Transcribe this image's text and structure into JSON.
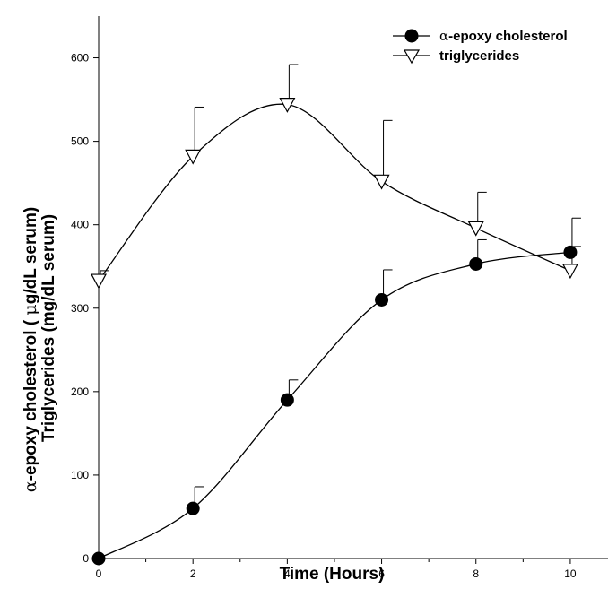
{
  "chart_data": {
    "type": "line",
    "xlabel": "Time (Hours)",
    "ylabel": {
      "line1_greek": "α",
      "line1_pre": "-epoxy cholesterol ( ",
      "line1_mu": "μ",
      "line1_post": "g/dL serum)",
      "line2": "Triglycerides (mg/dL serum)"
    },
    "xlim": [
      0,
      10.8
    ],
    "ylim": [
      0,
      650
    ],
    "x_ticks": [
      0,
      2,
      4,
      6,
      8,
      10
    ],
    "x_minor_ticks": [
      1,
      3,
      5,
      7,
      9
    ],
    "y_ticks": [
      0,
      100,
      200,
      300,
      400,
      500,
      600
    ],
    "grid": false,
    "legend_position": "top-right",
    "series": [
      {
        "name": "-epoxy cholesterol",
        "name_greek": "α",
        "marker": "filled-circle",
        "color": "#000000",
        "x": [
          0,
          2,
          4,
          6,
          8,
          10
        ],
        "y": [
          0,
          60,
          190,
          310,
          353,
          367
        ],
        "error_upper": [
          0,
          86,
          214,
          346,
          382,
          374
        ]
      },
      {
        "name": "triglycerides",
        "marker": "open-triangle-down",
        "color": "#000000",
        "x": [
          0,
          2,
          4,
          6,
          8,
          10
        ],
        "y": [
          333,
          482,
          544,
          452,
          396,
          345
        ],
        "error_upper": [
          345,
          541,
          592,
          525,
          439,
          408
        ]
      }
    ]
  }
}
